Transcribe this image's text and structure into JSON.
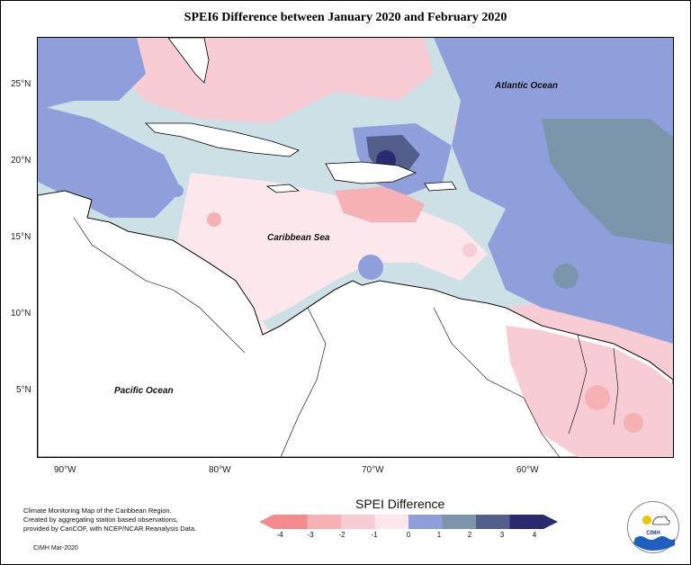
{
  "title": "SPEI6 Difference between January 2020 and February 2020",
  "map": {
    "lat_ticks": [
      "25°N",
      "20°N",
      "15°N",
      "10°N",
      "5°N"
    ],
    "lon_ticks": [
      "90°W",
      "80°W",
      "70°W",
      "60°W"
    ],
    "labels": {
      "atlantic": "Atlantic Ocean",
      "caribbean": "Caribbean Sea",
      "pacific": "Pacific Ocean"
    }
  },
  "legend": {
    "title": "SPEI Difference",
    "ticks": [
      "-4",
      "-3",
      "-2",
      "-1",
      "0",
      "1",
      "2",
      "3",
      "4"
    ],
    "colors": [
      "#f28c8e",
      "#f5b1b4",
      "#f8ccd4",
      "#fce8ec",
      "#cde0e6",
      "#8f9fdc",
      "#7b95ab",
      "#535f8a",
      "#2a2b6e"
    ]
  },
  "credit": {
    "lines": [
      "Climate Monitoring Map of the Caribbean Region.",
      "Created by aggregating station based observations,",
      "provided by CariCOF, with NCEP/NCAR Reanalysis Data."
    ],
    "date": "CIMH Mar-2020"
  },
  "logo": {
    "text": "CIMH"
  }
}
